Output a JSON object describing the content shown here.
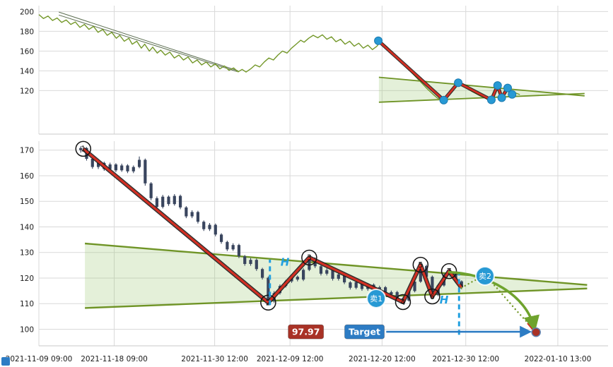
{
  "colors": {
    "grid": "#d9d9d9",
    "axis_text": "#1a1a1a",
    "price_line": "#74982a",
    "wedge_line": "#6f9426",
    "wedge_fill": "#9dc978",
    "channel": "#5c6e51",
    "zigzag_red": "#d32f23",
    "zigzag_edge": "#1c1c1c",
    "candle": "#39455e",
    "signal_blue": "#2799d4",
    "dashed_blue": "#22a0e0",
    "target_blue": "#2d7cc4",
    "tag_red": "#a93226",
    "arrow_green": "#6fa32e",
    "target_dot": "#a93226"
  },
  "x_axis": {
    "domain": [
      0,
      68
    ],
    "ticks": [
      {
        "day": 0,
        "label": "2021-11-09 09:00"
      },
      {
        "day": 9,
        "label": "2021-11-18 09:00"
      },
      {
        "day": 21,
        "label": "2021-11-30 12:00"
      },
      {
        "day": 30,
        "label": "2021-12-09 12:00"
      },
      {
        "day": 41,
        "label": "2021-12-20 12:00"
      },
      {
        "day": 51,
        "label": "2021-12-30 12:00"
      },
      {
        "day": 62,
        "label": "2022-01-10 13:00"
      }
    ]
  },
  "chart_data": [
    {
      "id": "overview",
      "type": "line",
      "ylim": [
        76,
        206
      ],
      "y_ticks": [
        120,
        140,
        160,
        180,
        200
      ],
      "day_map": {
        "f0": 0.6,
        "d0": 6,
        "slope": 0.0052
      },
      "price_line": [
        [
          0.0,
          197
        ],
        [
          0.008,
          193
        ],
        [
          0.016,
          195.5
        ],
        [
          0.024,
          191
        ],
        [
          0.032,
          193.5
        ],
        [
          0.04,
          189
        ],
        [
          0.048,
          191.5
        ],
        [
          0.056,
          187
        ],
        [
          0.064,
          189.5
        ],
        [
          0.072,
          184
        ],
        [
          0.08,
          187
        ],
        [
          0.088,
          182
        ],
        [
          0.096,
          185
        ],
        [
          0.104,
          179
        ],
        [
          0.112,
          182
        ],
        [
          0.12,
          176
        ],
        [
          0.128,
          179
        ],
        [
          0.136,
          173
        ],
        [
          0.142,
          176
        ],
        [
          0.15,
          170
        ],
        [
          0.158,
          173
        ],
        [
          0.164,
          167
        ],
        [
          0.172,
          170
        ],
        [
          0.18,
          163
        ],
        [
          0.186,
          167
        ],
        [
          0.194,
          160
        ],
        [
          0.2,
          164
        ],
        [
          0.208,
          158
        ],
        [
          0.214,
          161
        ],
        [
          0.222,
          156
        ],
        [
          0.23,
          159
        ],
        [
          0.238,
          153
        ],
        [
          0.246,
          156
        ],
        [
          0.254,
          151
        ],
        [
          0.262,
          154
        ],
        [
          0.27,
          148
        ],
        [
          0.278,
          151
        ],
        [
          0.286,
          146
        ],
        [
          0.294,
          149
        ],
        [
          0.302,
          144
        ],
        [
          0.31,
          147
        ],
        [
          0.318,
          142
        ],
        [
          0.326,
          145
        ],
        [
          0.334,
          140.5
        ],
        [
          0.342,
          143
        ],
        [
          0.35,
          139
        ],
        [
          0.357,
          141.5
        ],
        [
          0.364,
          138.8
        ],
        [
          0.372,
          142
        ],
        [
          0.38,
          146
        ],
        [
          0.388,
          144
        ],
        [
          0.396,
          149
        ],
        [
          0.404,
          153
        ],
        [
          0.412,
          151
        ],
        [
          0.42,
          156
        ],
        [
          0.428,
          160
        ],
        [
          0.436,
          158
        ],
        [
          0.444,
          163
        ],
        [
          0.452,
          167
        ],
        [
          0.46,
          171
        ],
        [
          0.466,
          169
        ],
        [
          0.474,
          173
        ],
        [
          0.482,
          176
        ],
        [
          0.49,
          173.5
        ],
        [
          0.498,
          176.5
        ],
        [
          0.506,
          172
        ],
        [
          0.514,
          174.5
        ],
        [
          0.522,
          169.5
        ],
        [
          0.53,
          172
        ],
        [
          0.538,
          167
        ],
        [
          0.546,
          170
        ],
        [
          0.554,
          165
        ],
        [
          0.562,
          168
        ],
        [
          0.57,
          163
        ],
        [
          0.578,
          166
        ],
        [
          0.586,
          161.5
        ],
        [
          0.594,
          165
        ],
        [
          0.6,
          170
        ],
        [
          0.612,
          164
        ],
        [
          0.622,
          158
        ],
        [
          0.632,
          152
        ],
        [
          0.642,
          146
        ],
        [
          0.652,
          140
        ],
        [
          0.662,
          134
        ],
        [
          0.672,
          128
        ],
        [
          0.682,
          122
        ],
        [
          0.692,
          116.5
        ],
        [
          0.7,
          112.5
        ],
        [
          0.707,
          111
        ],
        [
          0.711,
          110.4
        ],
        [
          0.718,
          114
        ],
        [
          0.724,
          118.5
        ],
        [
          0.73,
          123
        ],
        [
          0.737,
          128
        ],
        [
          0.744,
          125.5
        ],
        [
          0.752,
          122.5
        ],
        [
          0.76,
          119.5
        ],
        [
          0.768,
          117
        ],
        [
          0.776,
          114.5
        ],
        [
          0.784,
          112.5
        ],
        [
          0.795,
          110.6
        ],
        [
          0.8,
          116
        ],
        [
          0.806,
          125.2
        ],
        [
          0.81,
          119
        ],
        [
          0.813,
          112.8
        ],
        [
          0.818,
          117.5
        ],
        [
          0.824,
          122.7
        ],
        [
          0.828,
          119
        ],
        [
          0.831,
          116.2
        ],
        [
          0.838,
          117.5
        ],
        [
          0.845,
          116.0
        ]
      ],
      "channel": [
        [
          [
            0.035,
            199.5
          ],
          [
            0.35,
            140.0
          ]
        ],
        [
          [
            0.035,
            196.5
          ],
          [
            0.348,
            139.3
          ]
        ]
      ],
      "wedge": {
        "upper": [
          [
            5.5,
            133.5
          ],
          [
            75,
            114.7
          ]
        ],
        "lower": [
          [
            5.5,
            108.3
          ],
          [
            75,
            117.1
          ]
        ],
        "fill": [
          [
            5.5,
            133.5
          ],
          [
            69,
            116.35
          ],
          [
            5.5,
            108.3
          ]
        ]
      }
    },
    {
      "id": "main",
      "type": "candlestick",
      "ylim": [
        93.5,
        173.5
      ],
      "y_ticks": [
        100,
        110,
        120,
        130,
        140,
        150,
        160,
        170
      ],
      "candles": [
        [
          5.0,
          170.0,
          171.5,
          169.0,
          170.8
        ],
        [
          5.7,
          170.8,
          171.2,
          165.9,
          166.6
        ],
        [
          6.4,
          166.6,
          167.2,
          162.7,
          163.4
        ],
        [
          7.1,
          163.4,
          165.7,
          162.6,
          165.0
        ],
        [
          7.8,
          165.0,
          165.5,
          161.9,
          162.6
        ],
        [
          8.5,
          162.6,
          165.1,
          162.0,
          164.4
        ],
        [
          9.2,
          164.4,
          164.9,
          161.4,
          162.1
        ],
        [
          9.9,
          162.1,
          164.7,
          161.5,
          164.0
        ],
        [
          10.6,
          164.0,
          164.5,
          161.0,
          161.7
        ],
        [
          11.3,
          161.7,
          164.0,
          161.0,
          163.4
        ],
        [
          12.0,
          163.4,
          167.5,
          162.9,
          166.2
        ],
        [
          12.7,
          166.2,
          166.7,
          156.1,
          157.0
        ],
        [
          13.4,
          157.0,
          157.5,
          150.4,
          151.2
        ],
        [
          14.1,
          151.2,
          151.9,
          147.0,
          147.8
        ],
        [
          14.8,
          147.8,
          152.5,
          147.2,
          151.8
        ],
        [
          15.5,
          151.8,
          152.3,
          148.2,
          148.9
        ],
        [
          16.2,
          148.9,
          152.8,
          148.3,
          152.1
        ],
        [
          16.9,
          152.1,
          152.6,
          146.9,
          147.6
        ],
        [
          17.6,
          147.6,
          148.1,
          143.4,
          144.1
        ],
        [
          18.3,
          144.1,
          146.5,
          143.4,
          145.8
        ],
        [
          19.0,
          145.8,
          146.3,
          141.3,
          142.0
        ],
        [
          19.7,
          142.0,
          142.5,
          138.4,
          139.1
        ],
        [
          20.4,
          139.1,
          141.5,
          138.4,
          140.8
        ],
        [
          21.1,
          140.8,
          141.3,
          136.3,
          137.0
        ],
        [
          21.8,
          137.0,
          137.5,
          133.4,
          134.1
        ],
        [
          22.5,
          134.1,
          134.6,
          130.5,
          131.2
        ],
        [
          23.2,
          131.2,
          133.6,
          130.6,
          132.9
        ],
        [
          23.9,
          132.9,
          133.4,
          127.8,
          128.5
        ],
        [
          24.6,
          128.5,
          129.0,
          124.8,
          125.5
        ],
        [
          25.3,
          125.5,
          127.8,
          124.8,
          127.1
        ],
        [
          26.0,
          127.1,
          127.6,
          122.8,
          123.5
        ],
        [
          26.7,
          123.5,
          124.0,
          119.4,
          120.1
        ],
        [
          27.4,
          120.1,
          120.6,
          110.0,
          111.0
        ],
        [
          28.1,
          111.0,
          114.9,
          110.3,
          114.1
        ],
        [
          28.8,
          114.1,
          117.5,
          113.5,
          116.9
        ],
        [
          29.5,
          116.9,
          119.3,
          116.3,
          118.7
        ],
        [
          30.2,
          118.7,
          121.1,
          118.1,
          120.5
        ],
        [
          30.9,
          120.5,
          121.0,
          118.7,
          119.4
        ],
        [
          31.6,
          119.4,
          123.8,
          118.8,
          123.2
        ],
        [
          32.3,
          123.2,
          128.3,
          122.7,
          127.6
        ],
        [
          33.0,
          127.6,
          128.1,
          123.9,
          124.6
        ],
        [
          33.7,
          124.6,
          125.1,
          121.0,
          121.7
        ],
        [
          34.4,
          121.7,
          123.8,
          121.0,
          123.1
        ],
        [
          35.1,
          123.1,
          123.6,
          119.0,
          119.7
        ],
        [
          35.8,
          119.7,
          122.1,
          119.0,
          121.4
        ],
        [
          36.5,
          121.4,
          121.9,
          117.6,
          118.3
        ],
        [
          37.2,
          118.3,
          118.8,
          115.5,
          116.2
        ],
        [
          37.9,
          116.2,
          118.9,
          115.6,
          118.4
        ],
        [
          38.6,
          118.4,
          118.9,
          115.0,
          115.7
        ],
        [
          39.3,
          115.7,
          118.0,
          115.0,
          117.4
        ],
        [
          40.0,
          117.4,
          117.9,
          114.0,
          114.7
        ],
        [
          40.7,
          114.7,
          117.0,
          114.0,
          116.4
        ],
        [
          41.4,
          116.4,
          116.9,
          112.9,
          113.6
        ],
        [
          42.1,
          113.6,
          115.1,
          112.9,
          114.5
        ],
        [
          42.8,
          114.5,
          115.0,
          111.4,
          112.1
        ],
        [
          43.5,
          112.1,
          112.6,
          110.4,
          111.2
        ],
        [
          44.2,
          111.2,
          115.5,
          110.8,
          114.9
        ],
        [
          44.9,
          114.9,
          119.2,
          114.4,
          118.6
        ],
        [
          45.6,
          118.6,
          125.4,
          118.1,
          124.7
        ],
        [
          46.3,
          124.7,
          125.2,
          119.8,
          120.5
        ],
        [
          47.0,
          120.5,
          121.0,
          112.6,
          113.4
        ],
        [
          47.7,
          113.4,
          117.7,
          112.9,
          117.1
        ],
        [
          48.4,
          117.1,
          121.8,
          116.6,
          121.2
        ],
        [
          49.1,
          121.2,
          122.9,
          120.5,
          122.1
        ],
        [
          49.8,
          122.1,
          122.6,
          118.0,
          118.7
        ],
        [
          50.5,
          118.7,
          119.1,
          115.6,
          116.3
        ]
      ],
      "wedge": {
        "upper": [
          [
            5.5,
            133.5
          ],
          [
            65.5,
            117.3
          ]
        ],
        "lower": [
          [
            5.5,
            108.3
          ],
          [
            65.5,
            115.9
          ]
        ],
        "fill": [
          [
            5.5,
            133.5
          ],
          [
            65.5,
            117.3
          ],
          [
            65.5,
            115.9
          ],
          [
            5.5,
            108.3
          ]
        ]
      },
      "zigzag": [
        [
          5.3,
          170.5
        ],
        [
          27.4,
          110.4
        ],
        [
          32.3,
          128.0
        ],
        [
          43.5,
          110.6
        ],
        [
          45.6,
          125.2
        ],
        [
          47.0,
          112.8
        ],
        [
          49.0,
          122.7
        ],
        [
          50.5,
          116.2
        ]
      ],
      "pivots": [
        {
          "n": "1",
          "d": 5.3,
          "p": 170.5
        },
        {
          "n": "2",
          "d": 27.4,
          "p": 110.4
        },
        {
          "n": "3",
          "d": 32.3,
          "p": 128.0
        },
        {
          "n": "4",
          "d": 43.5,
          "p": 110.6
        },
        {
          "n": "5",
          "d": 45.6,
          "p": 125.2
        },
        {
          "n": "6",
          "d": 47.0,
          "p": 112.8
        },
        {
          "n": "7",
          "d": 49.0,
          "p": 122.7
        }
      ],
      "sell_markers": [
        {
          "label": "卖1",
          "d": 40.3,
          "p": 112.0
        },
        {
          "label": "卖2",
          "d": 53.3,
          "p": 120.8
        }
      ],
      "h_lines": [
        {
          "d": 27.6,
          "p_from": 109.4,
          "p_to": 127.2,
          "label": "H",
          "label_d": 29.4,
          "label_p": 124.8
        },
        {
          "d": 50.2,
          "p_from": 97.8,
          "p_to": 122.4,
          "label": "H",
          "label_d": 48.4,
          "label_p": 110.0
        }
      ],
      "projection": [
        [
          50.5,
          116.2
        ],
        [
          52.0,
          119.0
        ],
        [
          53.3,
          120.8
        ],
        [
          54.6,
          116.5
        ],
        [
          55.8,
          112.0
        ],
        [
          57.0,
          107.5
        ],
        [
          58.2,
          103.2
        ],
        [
          59.2,
          99.4
        ]
      ],
      "red_tail": [
        [
          58.4,
          102.4
        ],
        [
          59.3,
          98.9
        ]
      ],
      "green_arrow": {
        "start": [
          48.9,
          122.3
        ],
        "c1": [
          53.5,
          122.0
        ],
        "c2": [
          58.3,
          113.5
        ],
        "end": [
          59.2,
          100.2
        ]
      },
      "price_tag": {
        "text": "97.97",
        "d": 31.9,
        "p": 99.0
      },
      "target_tag": {
        "text": "Target",
        "d": 38.9,
        "p": 99.0
      },
      "target_arrow": {
        "d_from": 41.5,
        "d_to": 58.6,
        "p": 99.0
      },
      "target_dot": {
        "d": 59.4,
        "p": 98.8
      }
    }
  ]
}
